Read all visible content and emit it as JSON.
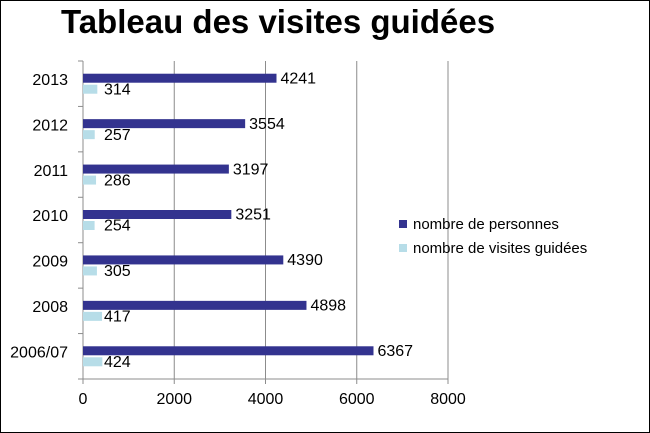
{
  "chart_data": {
    "type": "bar",
    "orientation": "horizontal",
    "title": "Tableau des visites guidées",
    "categories": [
      "2013",
      "2012",
      "2011",
      "2010",
      "2009",
      "2008",
      "2006/07"
    ],
    "series": [
      {
        "name": "nombre de personnes",
        "color": "#33338f",
        "values": [
          4241,
          3554,
          3197,
          3251,
          4390,
          4898,
          6367
        ]
      },
      {
        "name": "nombre de visites guidées",
        "color": "#b7dde8",
        "values": [
          314,
          257,
          286,
          254,
          305,
          417,
          424
        ]
      }
    ],
    "xlim": [
      0,
      8000
    ],
    "xticks": [
      "0",
      "2000",
      "4000",
      "6000",
      "8000"
    ],
    "grid": true,
    "legend_position": "right"
  }
}
